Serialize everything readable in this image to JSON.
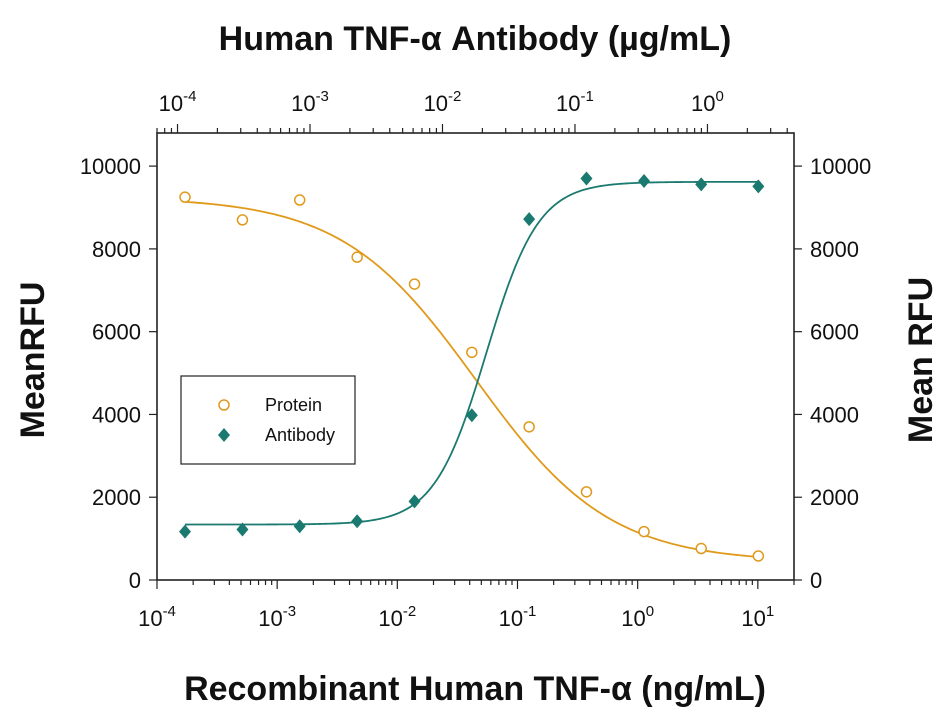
{
  "chart_data": {
    "type": "scatter",
    "title_top": "Human TNF-α Antibody (µg/mL)",
    "xlabel": "Recombinant Human TNF-α (ng/mL)",
    "ylabel_left": "MeanRFU",
    "ylabel_right": "Mean RFU",
    "x_scale": "log",
    "xlim": [
      0.0001,
      20
    ],
    "ylim": [
      0,
      10800
    ],
    "x_ticks": [
      {
        "base": "10",
        "exp": "-4",
        "value": 0.0001
      },
      {
        "base": "10",
        "exp": "-3",
        "value": 0.001
      },
      {
        "base": "10",
        "exp": "-2",
        "value": 0.01
      },
      {
        "base": "10",
        "exp": "-1",
        "value": 0.1
      },
      {
        "base": "10",
        "exp": "0",
        "value": 1
      },
      {
        "base": "10",
        "exp": "1",
        "value": 10
      }
    ],
    "top_x_ticks": [
      {
        "base": "10",
        "exp": "-4",
        "value": 0.0001
      },
      {
        "base": "10",
        "exp": "-3",
        "value": 0.001
      },
      {
        "base": "10",
        "exp": "-2",
        "value": 0.01
      },
      {
        "base": "10",
        "exp": "-1",
        "value": 0.1
      },
      {
        "base": "10",
        "exp": "0",
        "value": 1
      }
    ],
    "top_xlim": [
      7e-05,
      4.5
    ],
    "y_ticks": [
      "0",
      "2000",
      "4000",
      "6000",
      "8000",
      "10000"
    ],
    "legend_position": "center-left",
    "series": [
      {
        "name": "Protein",
        "marker": "open-circle",
        "color": "#e09a1b",
        "x": [
          0.000171,
          0.000514,
          0.00154,
          0.00463,
          0.0139,
          0.0417,
          0.125,
          0.375,
          1.13,
          3.38,
          10.1
        ],
        "y": [
          9250,
          8700,
          9180,
          7800,
          7150,
          5500,
          3700,
          2130,
          1170,
          760,
          580
        ]
      },
      {
        "name": "Antibody",
        "marker": "filled-diamond",
        "color": "#1b7a70",
        "x": [
          0.000171,
          0.000514,
          0.00154,
          0.00463,
          0.0139,
          0.0417,
          0.125,
          0.375,
          1.13,
          3.38,
          10.1
        ],
        "y": [
          1170,
          1220,
          1300,
          1420,
          1900,
          3980,
          8720,
          9700,
          9640,
          9560,
          9510
        ]
      }
    ],
    "fits": [
      {
        "series": "Protein",
        "top": 9250,
        "bottom": 430,
        "ec50": 0.045,
        "hill": -0.78
      },
      {
        "series": "Antibody",
        "top": 9620,
        "bottom": 1340,
        "ec50": 0.055,
        "hill": 2.0
      }
    ]
  }
}
